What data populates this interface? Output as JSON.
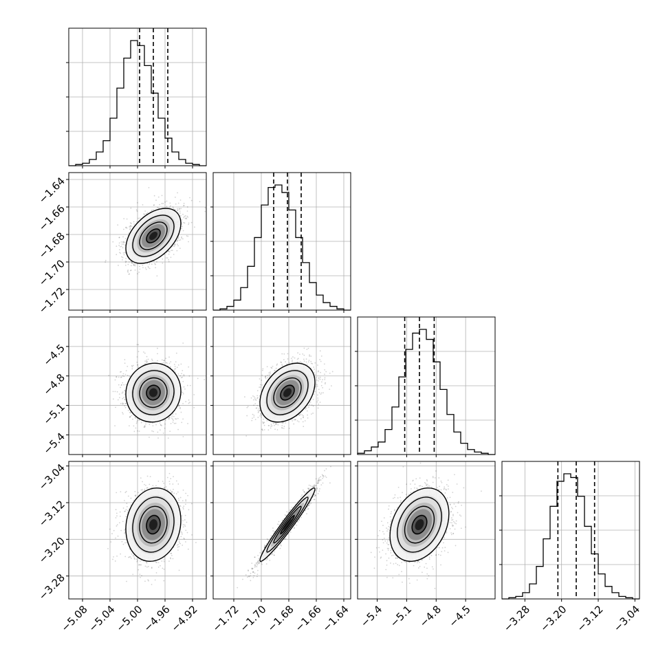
{
  "chart_data": {
    "type": "corner",
    "parameters": [
      {
        "name": "",
        "range": [
          -5.1,
          -4.9
        ],
        "mean": -4.977,
        "sigma": 0.02,
        "quantiles": [
          -4.997,
          -4.977,
          -4.956
        ],
        "ticks": [
          "-5.08",
          "-5.04",
          "-5.00",
          "-4.96",
          "-4.92"
        ],
        "histogram": [
          0.0,
          0.01,
          0.02,
          0.05,
          0.11,
          0.2,
          0.38,
          0.62,
          0.86,
          1.0,
          0.96,
          0.8,
          0.58,
          0.38,
          0.22,
          0.11,
          0.05,
          0.02,
          0.01,
          0.0
        ]
      },
      {
        "name": "",
        "range": [
          -1.735,
          -1.635
        ],
        "mean": -1.681,
        "sigma": 0.01,
        "quantiles": [
          -1.691,
          -1.681,
          -1.671
        ],
        "ticks": [
          "-1.72",
          "-1.70",
          "-1.68",
          "-1.66",
          "-1.64"
        ],
        "histogram": [
          0.0,
          0.01,
          0.03,
          0.08,
          0.18,
          0.35,
          0.58,
          0.84,
          0.98,
          1.0,
          0.94,
          0.8,
          0.58,
          0.38,
          0.22,
          0.12,
          0.06,
          0.03,
          0.01,
          0.0
        ]
      },
      {
        "name": "",
        "range": [
          -5.6,
          -4.2
        ],
        "mean": -4.97,
        "sigma": 0.15,
        "quantiles": [
          -5.12,
          -4.97,
          -4.82
        ],
        "ticks": [
          "-5.4",
          "-5.1",
          "-4.8",
          "-4.5"
        ],
        "histogram": [
          0.01,
          0.03,
          0.06,
          0.1,
          0.2,
          0.38,
          0.62,
          0.84,
          0.97,
          1.0,
          0.92,
          0.74,
          0.52,
          0.32,
          0.18,
          0.09,
          0.04,
          0.02,
          0.01,
          0.0
        ]
      },
      {
        "name": "",
        "range": [
          -3.33,
          -3.03
        ],
        "mean": -3.168,
        "sigma": 0.04,
        "quantiles": [
          -3.208,
          -3.168,
          -3.128
        ],
        "ticks": [
          "-3.28",
          "-3.20",
          "-3.12",
          "-3.04"
        ],
        "histogram": [
          0.0,
          0.01,
          0.02,
          0.05,
          0.12,
          0.26,
          0.48,
          0.74,
          0.94,
          1.0,
          0.97,
          0.82,
          0.58,
          0.36,
          0.2,
          0.1,
          0.05,
          0.02,
          0.01,
          0.0
        ]
      }
    ],
    "correlations": [
      [
        1.0,
        0.45,
        0.05,
        0.12
      ],
      [
        0.45,
        1.0,
        0.35,
        0.97
      ],
      [
        0.05,
        0.35,
        1.0,
        0.3
      ],
      [
        0.12,
        0.97,
        0.3,
        1.0
      ]
    ],
    "contour_levels_sigma": [
      0.5,
      1.0,
      1.5,
      2.0
    ],
    "histogram_bins": 20,
    "grid": true,
    "quantile_line_style": "dashed",
    "scatter_color": "#000000",
    "line_color": "#000000",
    "grid_color": "#b0b0b0"
  }
}
